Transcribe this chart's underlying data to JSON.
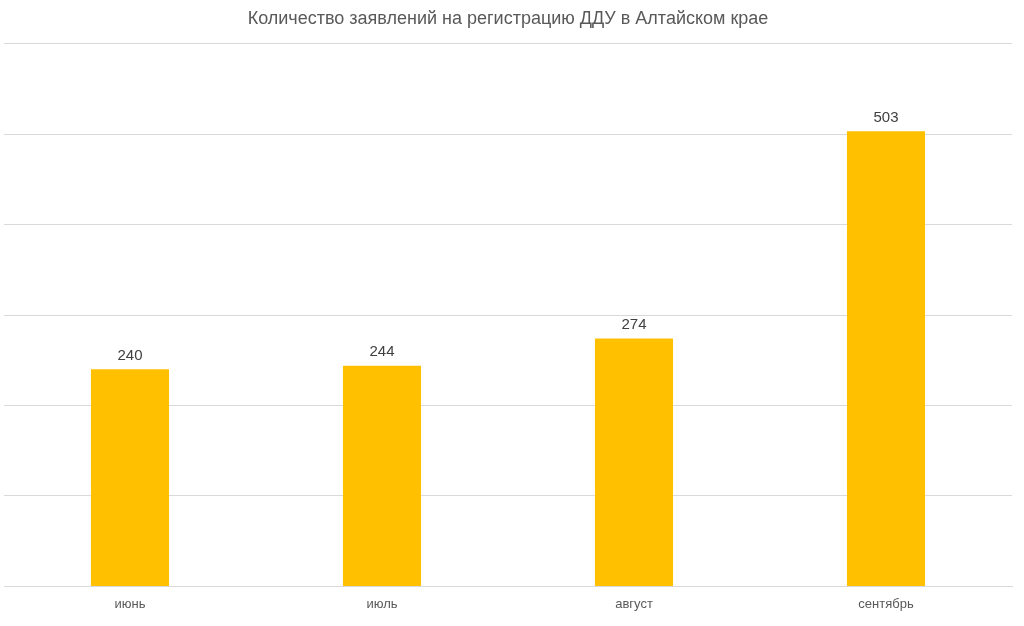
{
  "chart_data": {
    "type": "bar",
    "title": "Количество заявлений на регистрацию ДДУ в Алтайском крае",
    "categories": [
      "июнь",
      "июль",
      "август",
      "сентябрь"
    ],
    "values": [
      240,
      244,
      274,
      503
    ],
    "color": "#ffc000",
    "ylim": [
      0,
      600
    ],
    "yticks": [
      {
        "value": 0,
        "label": null
      },
      {
        "value": 100,
        "label": null
      },
      {
        "value": 200,
        "label": null
      },
      {
        "value": 300,
        "label": null
      },
      {
        "value": 400,
        "label": null
      },
      {
        "value": 500,
        "label": null
      },
      {
        "value": 600,
        "label": null
      }
    ],
    "grid": "y",
    "tick_labels": "x",
    "data_labels": true,
    "legend": false
  }
}
